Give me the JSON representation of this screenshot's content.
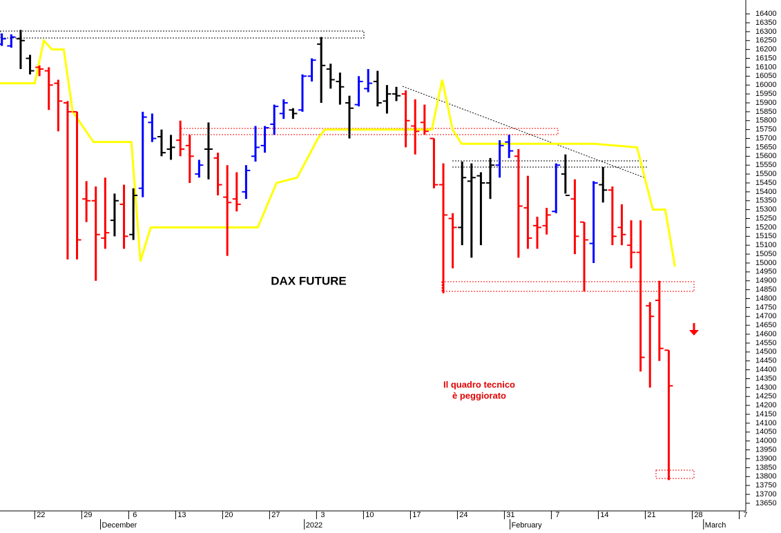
{
  "chart_data": {
    "type": "ohlc",
    "title": "DAX FUTURE",
    "annotation_lines": [
      "Il quadro tecnico",
      "è peggiorato"
    ],
    "x": [
      -4,
      -3,
      -2,
      -1,
      0,
      1,
      2,
      3,
      4,
      5,
      6,
      7,
      8,
      9,
      10,
      11,
      12,
      13,
      14,
      15,
      16,
      17,
      18,
      19,
      20,
      21,
      22,
      23,
      24,
      25,
      26,
      27,
      28,
      29,
      30,
      31,
      32,
      33,
      34,
      35,
      36,
      37,
      38,
      39,
      40,
      41,
      42,
      43,
      44,
      45,
      46,
      47,
      48,
      49,
      50,
      51,
      52,
      53,
      54,
      55,
      56,
      57,
      58,
      59,
      60,
      61,
      62,
      63,
      64,
      65,
      66,
      67
    ],
    "open": [
      16230,
      16220,
      16260,
      16150,
      16100,
      16080,
      16010,
      15900,
      15850,
      15360,
      15350,
      15140,
      15240,
      15330,
      15160,
      15420,
      15790,
      15710,
      15640,
      15690,
      15660,
      15500,
      15640,
      15590,
      15370,
      15360,
      15400,
      15600,
      15660,
      15780,
      15840,
      15860,
      15860,
      16050,
      16230,
      16090,
      16020,
      15900,
      15890,
      15980,
      16020,
      15910,
      15950,
      15950,
      15770,
      15790,
      15700,
      15440,
      15250,
      15200,
      15460,
      15490,
      15450,
      15550,
      15680,
      15600,
      15310,
      15210,
      15210,
      15290,
      15500,
      15360,
      15230,
      15110,
      15440,
      15410,
      15200,
      15100,
      15060,
      14760,
      14790,
      14510
    ],
    "high": [
      16290,
      16285,
      16310,
      16170,
      16110,
      16100,
      16030,
      15910,
      15850,
      15460,
      15430,
      15480,
      15390,
      15440,
      15420,
      15850,
      15840,
      15750,
      15720,
      15800,
      15720,
      15580,
      15790,
      15620,
      15550,
      15510,
      15550,
      15770,
      15770,
      15890,
      15920,
      15870,
      16060,
      16150,
      16270,
      16120,
      16070,
      15940,
      16050,
      16090,
      16080,
      16000,
      15990,
      15970,
      15920,
      15890,
      15700,
      15560,
      15280,
      15570,
      15560,
      15510,
      15590,
      15690,
      15720,
      15640,
      15490,
      15260,
      15310,
      15560,
      15610,
      15470,
      15230,
      15460,
      15540,
      15430,
      15330,
      15240,
      15240,
      14780,
      14900,
      14510
    ],
    "low": [
      16220,
      16210,
      16090,
      16060,
      16050,
      15860,
      15740,
      15020,
      15020,
      15230,
      14900,
      15080,
      15150,
      15080,
      15130,
      15370,
      15680,
      15600,
      15580,
      15600,
      15450,
      15480,
      15470,
      15380,
      15040,
      15290,
      15360,
      15570,
      15620,
      15720,
      15810,
      15810,
      15850,
      16020,
      15900,
      15980,
      15890,
      15700,
      15880,
      15960,
      15880,
      15840,
      15910,
      15650,
      15610,
      15720,
      15420,
      14830,
      14970,
      15100,
      15030,
      15100,
      15360,
      15480,
      15590,
      15030,
      15080,
      15080,
      15160,
      15280,
      15390,
      15050,
      14840,
      15000,
      15340,
      15100,
      15100,
      14970,
      14390,
      14300,
      14450,
      13780
    ],
    "close": [
      16260,
      16270,
      16250,
      16080,
      16090,
      16000,
      15910,
      15850,
      15130,
      15350,
      15160,
      15170,
      15350,
      15150,
      15380,
      15820,
      15700,
      15620,
      15650,
      15640,
      15600,
      15550,
      15640,
      15440,
      15340,
      15330,
      15520,
      15650,
      15760,
      15880,
      15900,
      15840,
      16050,
      16140,
      16110,
      16030,
      15990,
      15870,
      16020,
      16010,
      15900,
      15950,
      15940,
      15800,
      15740,
      15740,
      15440,
      15270,
      15200,
      15480,
      15480,
      15450,
      15550,
      15660,
      15630,
      15320,
      15140,
      15200,
      15270,
      15550,
      15380,
      15150,
      15130,
      15450,
      15410,
      15150,
      15160,
      15060,
      14470,
      14700,
      14520,
      14310
    ],
    "colors": [
      "#0000ff",
      "#0000ff",
      "#000000",
      "#000000",
      "#ff0000",
      "#ff0000",
      "#ff0000",
      "#ff0000",
      "#ff0000",
      "#ff0000",
      "#ff0000",
      "#ff0000",
      "#000000",
      "#ff0000",
      "#000000",
      "#0000ff",
      "#0000ff",
      "#000000",
      "#000000",
      "#ff0000",
      "#ff0000",
      "#0000ff",
      "#000000",
      "#ff0000",
      "#ff0000",
      "#ff0000",
      "#0000ff",
      "#0000ff",
      "#0000ff",
      "#0000ff",
      "#0000ff",
      "#000000",
      "#0000ff",
      "#0000ff",
      "#000000",
      "#000000",
      "#000000",
      "#000000",
      "#0000ff",
      "#0000ff",
      "#000000",
      "#000000",
      "#000000",
      "#ff0000",
      "#ff0000",
      "#ff0000",
      "#ff0000",
      "#ff0000",
      "#ff0000",
      "#000000",
      "#000000",
      "#000000",
      "#000000",
      "#0000ff",
      "#0000ff",
      "#ff0000",
      "#ff0000",
      "#ff0000",
      "#ff0000",
      "#0000ff",
      "#000000",
      "#ff0000",
      "#ff0000",
      "#0000ff",
      "#000000",
      "#ff0000",
      "#ff0000",
      "#ff0000",
      "#ff0000",
      "#ff0000",
      "#ff0000",
      "#ff0000"
    ],
    "line": {
      "color": "#ffff00",
      "x": [
        -4.2,
        -0.5,
        0.46,
        1.34,
        2.59,
        3.54,
        5.75,
        9.79,
        10.75,
        11.85,
        23.25,
        25.24,
        27.44,
        29.65,
        30.38,
        41.78,
        42.88,
        43.99,
        44.94,
        59.06,
        63.62,
        65.31,
        66.63,
        67.66
      ],
      "values": [
        16010,
        16010,
        16250,
        16200,
        16200,
        15850,
        15680,
        15680,
        15010,
        15200,
        15200,
        15450,
        15480,
        15700,
        15750,
        15750,
        16030,
        15750,
        15670,
        15670,
        15650,
        15300,
        15300,
        14980
      ]
    },
    "xlim": [
      -4.2,
      75.2
    ],
    "xticks": [
      {
        "value": -0.5,
        "label": "22"
      },
      {
        "value": 4.5,
        "label": "29"
      },
      {
        "value": 9.5,
        "label": "6"
      },
      {
        "value": 14.5,
        "label": "13"
      },
      {
        "value": 19.5,
        "label": "20"
      },
      {
        "value": 24.5,
        "label": "27"
      },
      {
        "value": 29.5,
        "label": "3"
      },
      {
        "value": 34.5,
        "label": "10"
      },
      {
        "value": 39.5,
        "label": "17"
      },
      {
        "value": 44.5,
        "label": "24"
      },
      {
        "value": 49.5,
        "label": "31"
      },
      {
        "value": 54.5,
        "label": "7"
      },
      {
        "value": 59.5,
        "label": "14"
      },
      {
        "value": 64.5,
        "label": "21"
      },
      {
        "value": 69.5,
        "label": "28"
      },
      {
        "value": 74.5,
        "label": "7"
      }
    ],
    "month_ticks": [
      {
        "value": 6.5,
        "label": "December"
      },
      {
        "value": 28.2,
        "label": "2022"
      },
      {
        "value": 50.1,
        "label": "February"
      },
      {
        "value": 70.7,
        "label": "March"
      }
    ],
    "ylim": [
      13607,
      16478
    ],
    "yticks": [
      13650,
      13700,
      13750,
      13800,
      13850,
      13900,
      13950,
      14000,
      14050,
      14100,
      14150,
      14200,
      14250,
      14300,
      14350,
      14400,
      14450,
      14500,
      14550,
      14600,
      14650,
      14700,
      14750,
      14800,
      14850,
      14900,
      14950,
      15000,
      15050,
      15100,
      15150,
      15200,
      15250,
      15300,
      15350,
      15400,
      15450,
      15500,
      15550,
      15600,
      15650,
      15700,
      15750,
      15800,
      15850,
      15900,
      15950,
      16000,
      16050,
      16100,
      16150,
      16200,
      16250,
      16300,
      16350,
      16400
    ]
  }
}
